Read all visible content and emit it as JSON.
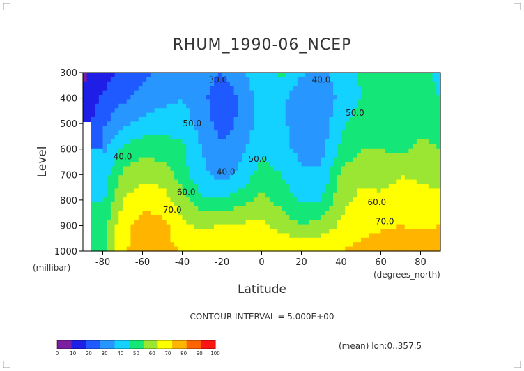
{
  "chart_data": {
    "type": "heatmap",
    "title": "RHUM_1990-06_NCEP",
    "xlabel": "Latitude",
    "ylabel": "Level",
    "x_units": "(degrees_north)",
    "y_units": "(millibar)",
    "xlim": [
      -90,
      90
    ],
    "ylim": [
      1000,
      300
    ],
    "x_ticks": [
      "-80",
      "-60",
      "-40",
      "-20",
      "0",
      "20",
      "40",
      "60",
      "80"
    ],
    "y_ticks": [
      "300",
      "400",
      "500",
      "600",
      "700",
      "800",
      "900",
      "1000"
    ],
    "contour_interval": "CONTOUR INTERVAL = 5.000E+00",
    "footnote": "(mean) lon:0..357.5",
    "contour_labels": [
      "30.0",
      "40.0",
      "40.0",
      "40.0",
      "50.0",
      "50.0",
      "50.0",
      "60.0",
      "60.0",
      "70.0",
      "70.0"
    ],
    "colorbar": {
      "ticks": [
        "0",
        "10",
        "20",
        "30",
        "40",
        "50",
        "60",
        "70",
        "80",
        "90",
        "100"
      ],
      "colors": [
        "#7a1fa2",
        "#1e1ee6",
        "#1e5aff",
        "#2896ff",
        "#14d2ff",
        "#14e678",
        "#9be632",
        "#ffff00",
        "#ffb400",
        "#ff6400",
        "#ff1414"
      ]
    },
    "x": [
      -90,
      -80,
      -70,
      -60,
      -50,
      -40,
      -30,
      -20,
      -10,
      0,
      10,
      20,
      30,
      40,
      50,
      60,
      70,
      80,
      90
    ],
    "y": [
      300,
      400,
      500,
      600,
      700,
      800,
      900,
      1000
    ],
    "z": [
      [
        8,
        15,
        22,
        28,
        32,
        38,
        35,
        30,
        38,
        47,
        52,
        42,
        38,
        44,
        52,
        55,
        58,
        52,
        48
      ],
      [
        12,
        22,
        28,
        33,
        37,
        40,
        33,
        22,
        32,
        45,
        44,
        30,
        34,
        42,
        50,
        55,
        56,
        54,
        50
      ],
      [
        15,
        28,
        38,
        43,
        46,
        45,
        36,
        24,
        33,
        45,
        42,
        35,
        34,
        48,
        56,
        55,
        52,
        58,
        57
      ],
      [
        null,
        38,
        52,
        56,
        55,
        52,
        40,
        32,
        38,
        48,
        43,
        37,
        36,
        53,
        60,
        60,
        58,
        62,
        60
      ],
      [
        null,
        45,
        62,
        67,
        66,
        55,
        42,
        36,
        43,
        55,
        50,
        42,
        42,
        62,
        67,
        66,
        70,
        68,
        66
      ],
      [
        null,
        48,
        70,
        76,
        74,
        64,
        52,
        50,
        56,
        63,
        56,
        48,
        50,
        66,
        73,
        72,
        73,
        74,
        72
      ],
      [
        null,
        56,
        76,
        85,
        83,
        73,
        68,
        71,
        72,
        73,
        66,
        60,
        64,
        72,
        78,
        79,
        80,
        78,
        80
      ],
      [
        null,
        58,
        78,
        86,
        84,
        79,
        78,
        80,
        80,
        80,
        80,
        80,
        80,
        80,
        82,
        84,
        86,
        88,
        85
      ]
    ]
  }
}
